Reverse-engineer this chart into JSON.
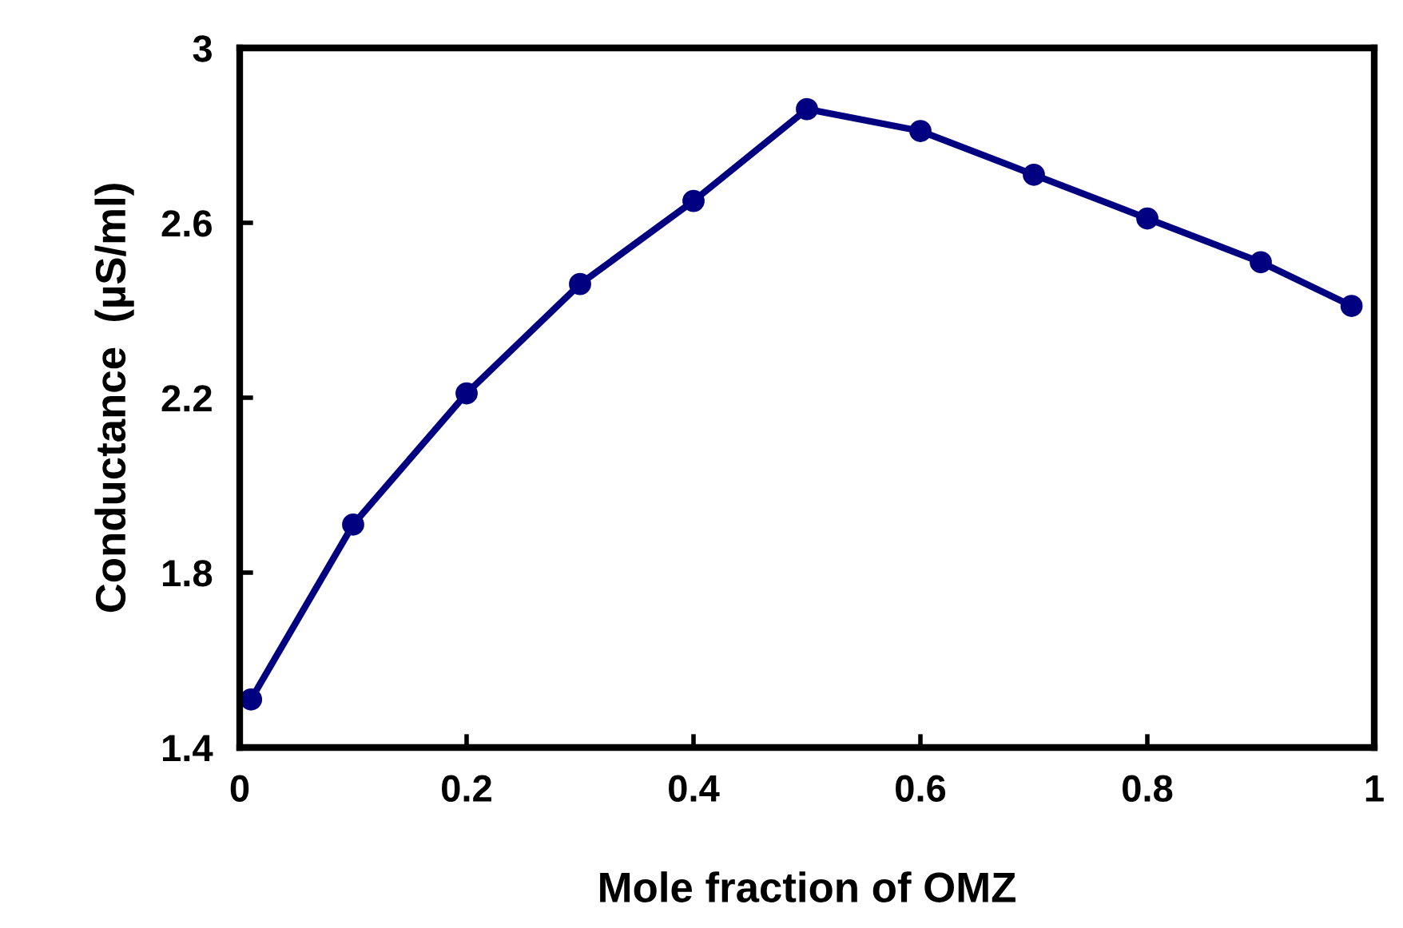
{
  "chart_data": {
    "type": "line",
    "xlabel": "Mole fraction of OMZ",
    "ylabel": "Conductance  (µS/ml)",
    "x": [
      0.01,
      0.1,
      0.2,
      0.3,
      0.4,
      0.5,
      0.6,
      0.7,
      0.8,
      0.9,
      0.98
    ],
    "series": [
      {
        "color": "#000080",
        "values": [
          1.51,
          1.91,
          2.21,
          2.46,
          2.65,
          2.86,
          2.81,
          2.71,
          2.61,
          2.51,
          2.41
        ]
      }
    ],
    "xlim": [
      0,
      1
    ],
    "xticks": [
      0,
      0.2,
      0.4,
      0.6,
      0.8,
      1
    ],
    "ylim": [
      1.4,
      3
    ],
    "yticks": [
      1.4,
      1.8,
      2.2,
      2.6,
      3
    ],
    "marker": "circle",
    "line_style": "solid",
    "grid": false,
    "legend": false
  }
}
